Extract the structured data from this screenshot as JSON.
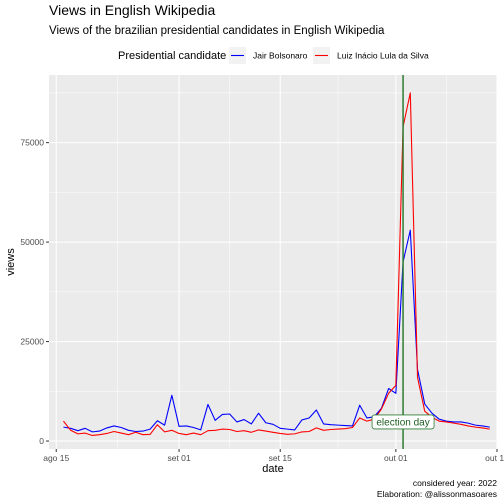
{
  "chart_data": {
    "type": "line",
    "title": "Views in English Wikipedia",
    "subtitle": "Views of the brazilian presidential candidates in English Wikipedia",
    "xlabel": "date",
    "ylabel": "views",
    "legend": {
      "title": "Presidential candidate",
      "position": "top"
    },
    "caption": [
      "considered year: 2022",
      "Elaboration: @alissonmasoares"
    ],
    "xlim": [
      "2022-08-14",
      "2022-10-15"
    ],
    "ylim": [
      -2000,
      92000
    ],
    "x_ticks": [
      {
        "date": "2022-08-15",
        "label": "ago 15"
      },
      {
        "date": "2022-09-01",
        "label": "set 01"
      },
      {
        "date": "2022-09-15",
        "label": "set 15"
      },
      {
        "date": "2022-10-01",
        "label": "out 01"
      },
      {
        "date": "2022-10-15",
        "label": "out 15"
      }
    ],
    "y_ticks": [
      0,
      25000,
      50000,
      75000
    ],
    "y_tick_labels": [
      "0",
      "25000",
      "50000",
      "75000"
    ],
    "annotation": {
      "label": "election day",
      "date": "2022-10-02",
      "y": 4800,
      "color": "#2e7d32"
    },
    "grid": true,
    "series": [
      {
        "name": "Jair Bolsonaro",
        "color": "#0000ff",
        "dates": [
          "2022-08-16",
          "2022-08-17",
          "2022-08-18",
          "2022-08-19",
          "2022-08-20",
          "2022-08-21",
          "2022-08-22",
          "2022-08-23",
          "2022-08-24",
          "2022-08-25",
          "2022-08-26",
          "2022-08-27",
          "2022-08-28",
          "2022-08-29",
          "2022-08-30",
          "2022-08-31",
          "2022-09-01",
          "2022-09-02",
          "2022-09-03",
          "2022-09-04",
          "2022-09-05",
          "2022-09-06",
          "2022-09-07",
          "2022-09-08",
          "2022-09-09",
          "2022-09-10",
          "2022-09-11",
          "2022-09-12",
          "2022-09-13",
          "2022-09-14",
          "2022-09-15",
          "2022-09-16",
          "2022-09-17",
          "2022-09-18",
          "2022-09-19",
          "2022-09-20",
          "2022-09-21",
          "2022-09-22",
          "2022-09-23",
          "2022-09-24",
          "2022-09-25",
          "2022-09-26",
          "2022-09-27",
          "2022-09-28",
          "2022-09-29",
          "2022-09-30",
          "2022-10-01",
          "2022-10-02",
          "2022-10-03",
          "2022-10-04",
          "2022-10-05",
          "2022-10-06",
          "2022-10-07",
          "2022-10-08",
          "2022-10-09",
          "2022-10-10",
          "2022-10-11",
          "2022-10-12",
          "2022-10-13",
          "2022-10-14"
        ],
        "values": [
          3500,
          3200,
          2600,
          3200,
          2300,
          2500,
          3300,
          3800,
          3400,
          2700,
          2400,
          2500,
          3000,
          5100,
          4000,
          11500,
          3700,
          3800,
          3400,
          2800,
          9200,
          5200,
          6700,
          6800,
          4800,
          5400,
          4300,
          7000,
          4600,
          4200,
          3200,
          3000,
          2800,
          5300,
          5800,
          7800,
          4300,
          4100,
          4000,
          3900,
          3800,
          9000,
          5800,
          6100,
          8200,
          13200,
          12000,
          45000,
          53000,
          18000,
          9300,
          7000,
          5500,
          5000,
          4800,
          4800,
          4500,
          4000,
          3800,
          3500
        ]
      },
      {
        "name": "Luiz Inácio Lula da Silva",
        "color": "#ff0000",
        "dates": [
          "2022-08-16",
          "2022-08-17",
          "2022-08-18",
          "2022-08-19",
          "2022-08-20",
          "2022-08-21",
          "2022-08-22",
          "2022-08-23",
          "2022-08-24",
          "2022-08-25",
          "2022-08-26",
          "2022-08-27",
          "2022-08-28",
          "2022-08-29",
          "2022-08-30",
          "2022-08-31",
          "2022-09-01",
          "2022-09-02",
          "2022-09-03",
          "2022-09-04",
          "2022-09-05",
          "2022-09-06",
          "2022-09-07",
          "2022-09-08",
          "2022-09-09",
          "2022-09-10",
          "2022-09-11",
          "2022-09-12",
          "2022-09-13",
          "2022-09-14",
          "2022-09-15",
          "2022-09-16",
          "2022-09-17",
          "2022-09-18",
          "2022-09-19",
          "2022-09-20",
          "2022-09-21",
          "2022-09-22",
          "2022-09-23",
          "2022-09-24",
          "2022-09-25",
          "2022-09-26",
          "2022-09-27",
          "2022-09-28",
          "2022-09-29",
          "2022-09-30",
          "2022-10-01",
          "2022-10-02",
          "2022-10-03",
          "2022-10-04",
          "2022-10-05",
          "2022-10-06",
          "2022-10-07",
          "2022-10-08",
          "2022-10-09",
          "2022-10-10",
          "2022-10-11",
          "2022-10-12",
          "2022-10-13",
          "2022-10-14"
        ],
        "values": [
          5000,
          2700,
          1800,
          2000,
          1400,
          1600,
          1900,
          2400,
          2000,
          1600,
          2200,
          1600,
          1700,
          4100,
          2300,
          2700,
          1900,
          1600,
          2000,
          1600,
          2600,
          2700,
          3000,
          2900,
          2400,
          2600,
          2200,
          2800,
          2500,
          2200,
          1900,
          1700,
          1800,
          2300,
          2400,
          3300,
          2700,
          2900,
          3000,
          3100,
          3400,
          5800,
          5000,
          5500,
          8000,
          12000,
          14000,
          79000,
          87500,
          16000,
          7500,
          6000,
          5000,
          4800,
          4500,
          4200,
          3800,
          3500,
          3300,
          3000
        ]
      }
    ]
  }
}
